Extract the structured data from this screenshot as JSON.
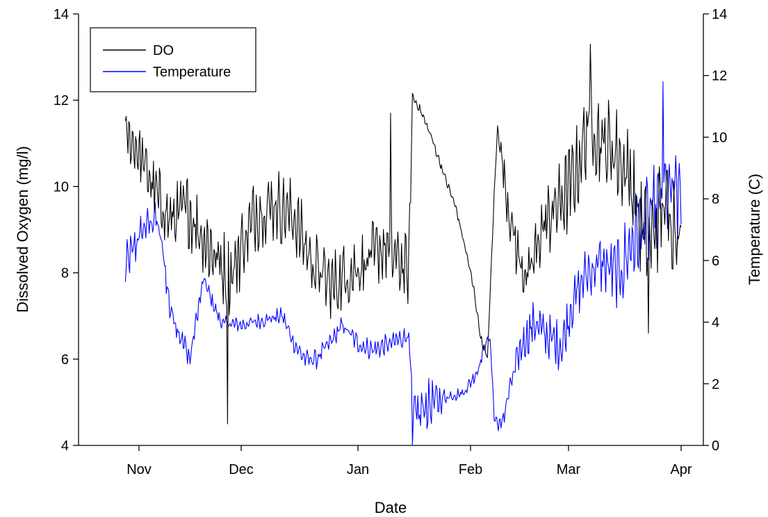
{
  "chart_data": {
    "type": "line",
    "title": "",
    "xlabel": "Date",
    "ylabel_left": "Dissolved Oxygen (mg/l)",
    "ylabel_right": "Temperature (C)",
    "x_ticks": [
      "Nov",
      "Dec",
      "Jan",
      "Feb",
      "Mar",
      "Apr"
    ],
    "x_tick_dates": [
      "11-01",
      "12-01",
      "01-01",
      "02-01",
      "03-01",
      "04-01"
    ],
    "y_left_ticks": [
      4,
      6,
      8,
      10,
      12,
      14
    ],
    "y_right_ticks": [
      0,
      2,
      4,
      6,
      8,
      10,
      12,
      14
    ],
    "y_left_lim": [
      4,
      14
    ],
    "y_right_lim": [
      0,
      14
    ],
    "grid": false,
    "legend": {
      "placement": "top-left",
      "entries": [
        "DO",
        "Temperature"
      ]
    },
    "series": [
      {
        "name": "DO",
        "axis": "left",
        "color": "#000000",
        "trend": [
          [
            "10-28",
            11.2
          ],
          [
            "11-01",
            10.8
          ],
          [
            "11-05",
            10.0
          ],
          [
            "11-10",
            9.2
          ],
          [
            "11-15",
            9.5
          ],
          [
            "11-20",
            8.8
          ],
          [
            "11-25",
            8.2
          ],
          [
            "11-28",
            7.9
          ],
          [
            "12-01",
            8.6
          ],
          [
            "12-05",
            9.4
          ],
          [
            "12-10",
            9.6
          ],
          [
            "12-15",
            9.3
          ],
          [
            "12-20",
            8.2
          ],
          [
            "12-25",
            7.7
          ],
          [
            "12-30",
            8.0
          ],
          [
            "01-04",
            8.3
          ],
          [
            "01-08",
            8.6
          ],
          [
            "01-12",
            8.3
          ],
          [
            "01-15",
            8.0
          ],
          [
            "01-16",
            12.1
          ],
          [
            "01-18",
            11.8
          ],
          [
            "01-21",
            11.2
          ],
          [
            "01-25",
            10.2
          ],
          [
            "01-28",
            9.5
          ],
          [
            "01-31",
            8.4
          ],
          [
            "02-02",
            7.6
          ],
          [
            "02-04",
            6.5
          ],
          [
            "02-06",
            6.0
          ],
          [
            "02-08",
            9.8
          ],
          [
            "02-09",
            11.4
          ],
          [
            "02-12",
            9.6
          ],
          [
            "02-15",
            8.4
          ],
          [
            "02-18",
            7.8
          ],
          [
            "02-22",
            9.0
          ],
          [
            "02-26",
            9.5
          ],
          [
            "03-01",
            9.9
          ],
          [
            "03-04",
            10.6
          ],
          [
            "03-07",
            11.6
          ],
          [
            "03-10",
            11.0
          ],
          [
            "03-14",
            10.8
          ],
          [
            "03-18",
            10.2
          ],
          [
            "03-21",
            9.0
          ],
          [
            "03-24",
            8.8
          ],
          [
            "03-27",
            9.6
          ],
          [
            "03-30",
            9.2
          ],
          [
            "04-01",
            9.0
          ]
        ],
        "amplitude": [
          [
            "10-28",
            0.5
          ],
          [
            "11-10",
            0.8
          ],
          [
            "12-01",
            0.9
          ],
          [
            "12-20",
            0.8
          ],
          [
            "01-15",
            0.8
          ],
          [
            "01-16",
            0.1
          ],
          [
            "02-07",
            0.1
          ],
          [
            "02-09",
            0.1
          ],
          [
            "02-12",
            0.6
          ],
          [
            "03-01",
            1.0
          ],
          [
            "03-10",
            1.1
          ],
          [
            "04-01",
            1.2
          ]
        ],
        "spikes": [
          [
            "11-27",
            4.5
          ],
          [
            "01-10",
            11.7
          ],
          [
            "03-07",
            13.3
          ],
          [
            "03-23",
            6.6
          ]
        ]
      },
      {
        "name": "Temperature",
        "axis": "right",
        "color": "#0000ff",
        "trend": [
          [
            "10-28",
            5.8
          ],
          [
            "11-02",
            7.0
          ],
          [
            "11-06",
            7.4
          ],
          [
            "11-08",
            6.3
          ],
          [
            "11-10",
            4.5
          ],
          [
            "11-13",
            3.6
          ],
          [
            "11-16",
            2.8
          ],
          [
            "11-18",
            4.2
          ],
          [
            "11-20",
            5.4
          ],
          [
            "11-22",
            4.8
          ],
          [
            "11-25",
            4.0
          ],
          [
            "12-01",
            3.9
          ],
          [
            "12-08",
            4.1
          ],
          [
            "12-12",
            4.2
          ],
          [
            "12-15",
            3.3
          ],
          [
            "12-18",
            2.8
          ],
          [
            "12-21",
            2.8
          ],
          [
            "12-25",
            3.4
          ],
          [
            "12-28",
            3.9
          ],
          [
            "01-01",
            3.3
          ],
          [
            "01-05",
            3.1
          ],
          [
            "01-10",
            3.3
          ],
          [
            "01-15",
            3.6
          ],
          [
            "01-16",
            0.8
          ],
          [
            "01-20",
            1.3
          ],
          [
            "01-26",
            1.6
          ],
          [
            "01-30",
            1.7
          ],
          [
            "02-03",
            2.4
          ],
          [
            "02-06",
            3.5
          ],
          [
            "02-07",
            3.2
          ],
          [
            "02-08",
            0.9
          ],
          [
            "02-10",
            0.6
          ],
          [
            "02-13",
            2.0
          ],
          [
            "02-16",
            3.2
          ],
          [
            "02-20",
            4.0
          ],
          [
            "02-24",
            3.5
          ],
          [
            "02-28",
            3.2
          ],
          [
            "03-02",
            4.6
          ],
          [
            "03-06",
            5.6
          ],
          [
            "03-10",
            5.9
          ],
          [
            "03-15",
            5.5
          ],
          [
            "03-18",
            6.5
          ],
          [
            "03-22",
            7.2
          ],
          [
            "03-25",
            7.6
          ],
          [
            "03-28",
            8.2
          ],
          [
            "04-01",
            8.0
          ]
        ],
        "amplitude": [
          [
            "10-28",
            0.7
          ],
          [
            "11-08",
            0.5
          ],
          [
            "11-25",
            0.2
          ],
          [
            "12-20",
            0.3
          ],
          [
            "01-15",
            0.35
          ],
          [
            "01-16",
            1.0
          ],
          [
            "01-22",
            0.7
          ],
          [
            "01-26",
            0.2
          ],
          [
            "02-08",
            0.2
          ],
          [
            "02-18",
            0.7
          ],
          [
            "03-05",
            0.8
          ],
          [
            "03-20",
            1.4
          ],
          [
            "04-01",
            1.8
          ]
        ],
        "spikes": [
          [
            "01-16",
            0.0
          ],
          [
            "03-27",
            11.8
          ]
        ]
      }
    ]
  }
}
